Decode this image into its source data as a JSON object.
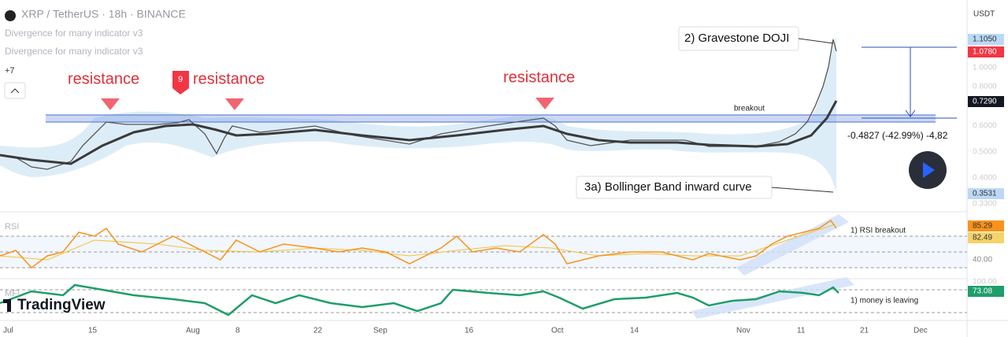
{
  "header": {
    "symbol": "XRP / TetherUS · 18h · BINANCE",
    "indicators": [
      "Divergence for many indicator v3",
      "Divergence for many indicator v3"
    ],
    "more": "+7"
  },
  "annotations": {
    "resistance": [
      "resistance",
      "resistance",
      "resistance"
    ],
    "badge": "9",
    "doji": "2) Gravestone DOJI",
    "breakout": "breakout",
    "measure": "-0.4827 (-42.99%) -4,82",
    "bollinger": "3a) Bollinger Band inward curve",
    "rsi_note": "1) RSI breakout",
    "mfi_note": "1) money is leaving"
  },
  "panes": {
    "rsi": "RSI",
    "mfi": "MFI"
  },
  "logo": "TradingView",
  "price_axis": {
    "unit": "USDT",
    "labels": [
      "1.1050",
      "1.0780",
      "1.0000",
      "0.8000",
      "0.7290",
      "0.6000",
      "0.5000",
      "0.4000",
      "0.3531",
      "0.3300"
    ]
  },
  "rsi_axis": [
    "85.29",
    "82.49",
    "40.00"
  ],
  "mfi_axis": [
    "100.00",
    "73.08"
  ],
  "time_axis": [
    "Jul",
    "15",
    "Aug",
    "8",
    "22",
    "Sep",
    "16",
    "Oct",
    "14",
    "Nov",
    "11",
    "21",
    "Dec"
  ]
}
